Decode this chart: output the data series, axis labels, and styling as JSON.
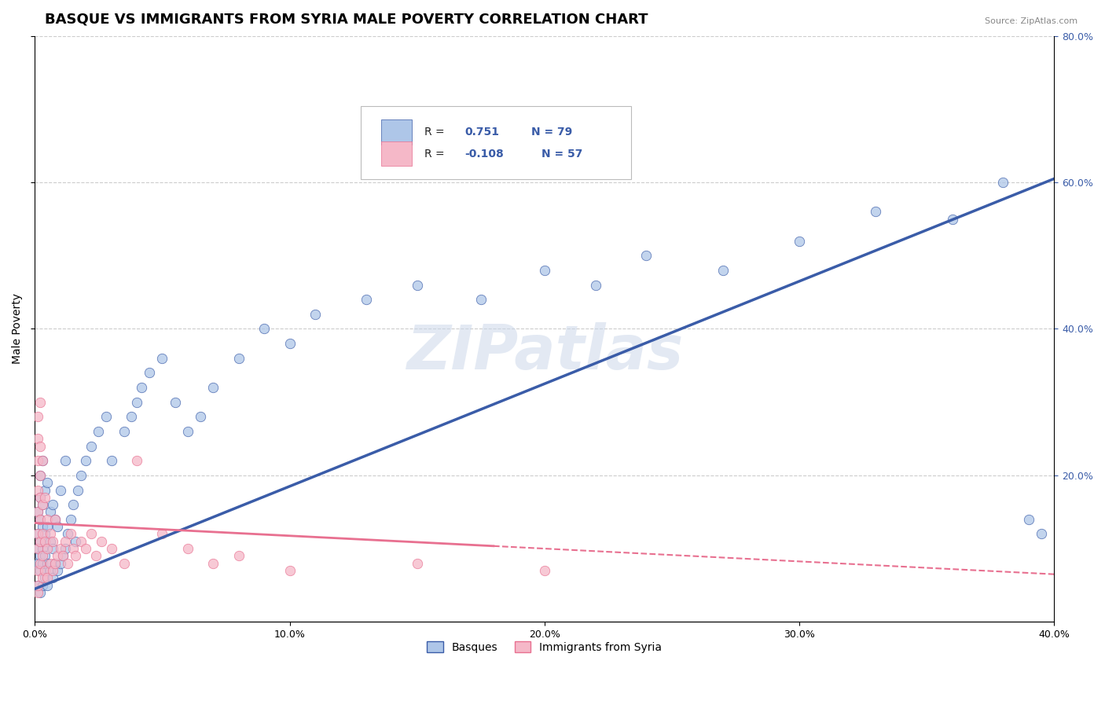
{
  "title": "BASQUE VS IMMIGRANTS FROM SYRIA MALE POVERTY CORRELATION CHART",
  "source_text": "Source: ZipAtlas.com",
  "ylabel": "Male Poverty",
  "xlim": [
    0.0,
    0.4
  ],
  "ylim": [
    0.0,
    0.8
  ],
  "xtick_labels": [
    "0.0%",
    "10.0%",
    "20.0%",
    "30.0%",
    "40.0%"
  ],
  "xtick_values": [
    0.0,
    0.1,
    0.2,
    0.3,
    0.4
  ],
  "ytick_labels": [
    "20.0%",
    "40.0%",
    "60.0%",
    "80.0%"
  ],
  "ytick_values": [
    0.2,
    0.4,
    0.6,
    0.8
  ],
  "legend_labels": [
    "Basques",
    "Immigrants from Syria"
  ],
  "legend_r_values": [
    "0.751",
    "-0.108"
  ],
  "legend_n_values": [
    "79",
    "57"
  ],
  "series_blue_color": "#aec6e8",
  "series_pink_color": "#f5b8c8",
  "line_blue_color": "#3a5ca8",
  "line_pink_color": "#e87090",
  "watermark_text": "ZIPatlas",
  "title_fontsize": 13,
  "axis_label_fontsize": 10,
  "tick_fontsize": 9,
  "blue_line_x0": 0.0,
  "blue_line_y0": 0.045,
  "blue_line_x1": 0.4,
  "blue_line_y1": 0.605,
  "pink_line_x0": 0.0,
  "pink_line_y0": 0.135,
  "pink_line_x1": 0.4,
  "pink_line_y1": 0.065,
  "basques_x": [
    0.001,
    0.001,
    0.001,
    0.001,
    0.001,
    0.002,
    0.002,
    0.002,
    0.002,
    0.002,
    0.002,
    0.002,
    0.003,
    0.003,
    0.003,
    0.003,
    0.003,
    0.003,
    0.004,
    0.004,
    0.004,
    0.004,
    0.005,
    0.005,
    0.005,
    0.005,
    0.006,
    0.006,
    0.006,
    0.007,
    0.007,
    0.007,
    0.008,
    0.008,
    0.009,
    0.009,
    0.01,
    0.01,
    0.011,
    0.012,
    0.012,
    0.013,
    0.014,
    0.015,
    0.016,
    0.017,
    0.018,
    0.02,
    0.022,
    0.025,
    0.028,
    0.03,
    0.035,
    0.038,
    0.04,
    0.042,
    0.045,
    0.05,
    0.055,
    0.06,
    0.065,
    0.07,
    0.08,
    0.09,
    0.1,
    0.11,
    0.13,
    0.15,
    0.175,
    0.2,
    0.22,
    0.24,
    0.27,
    0.3,
    0.33,
    0.36,
    0.38,
    0.39,
    0.395
  ],
  "basques_y": [
    0.05,
    0.08,
    0.1,
    0.12,
    0.15,
    0.04,
    0.07,
    0.09,
    0.11,
    0.14,
    0.17,
    0.2,
    0.05,
    0.08,
    0.1,
    0.13,
    0.16,
    0.22,
    0.06,
    0.09,
    0.12,
    0.18,
    0.05,
    0.08,
    0.13,
    0.19,
    0.07,
    0.11,
    0.15,
    0.06,
    0.1,
    0.16,
    0.08,
    0.14,
    0.07,
    0.13,
    0.08,
    0.18,
    0.09,
    0.1,
    0.22,
    0.12,
    0.14,
    0.16,
    0.11,
    0.18,
    0.2,
    0.22,
    0.24,
    0.26,
    0.28,
    0.22,
    0.26,
    0.28,
    0.3,
    0.32,
    0.34,
    0.36,
    0.3,
    0.26,
    0.28,
    0.32,
    0.36,
    0.4,
    0.38,
    0.42,
    0.44,
    0.46,
    0.44,
    0.48,
    0.46,
    0.5,
    0.48,
    0.52,
    0.56,
    0.55,
    0.6,
    0.14,
    0.12
  ],
  "syria_x": [
    0.001,
    0.001,
    0.001,
    0.001,
    0.001,
    0.001,
    0.001,
    0.001,
    0.001,
    0.001,
    0.002,
    0.002,
    0.002,
    0.002,
    0.002,
    0.002,
    0.002,
    0.003,
    0.003,
    0.003,
    0.003,
    0.003,
    0.004,
    0.004,
    0.004,
    0.005,
    0.005,
    0.005,
    0.006,
    0.006,
    0.007,
    0.007,
    0.008,
    0.008,
    0.009,
    0.01,
    0.011,
    0.012,
    0.013,
    0.014,
    0.015,
    0.016,
    0.018,
    0.02,
    0.022,
    0.024,
    0.026,
    0.03,
    0.035,
    0.04,
    0.05,
    0.06,
    0.07,
    0.08,
    0.1,
    0.15,
    0.2
  ],
  "syria_y": [
    0.04,
    0.07,
    0.1,
    0.12,
    0.15,
    0.18,
    0.22,
    0.25,
    0.28,
    0.05,
    0.08,
    0.11,
    0.14,
    0.17,
    0.2,
    0.24,
    0.3,
    0.06,
    0.09,
    0.12,
    0.16,
    0.22,
    0.07,
    0.11,
    0.17,
    0.06,
    0.1,
    0.14,
    0.08,
    0.12,
    0.07,
    0.11,
    0.08,
    0.14,
    0.09,
    0.1,
    0.09,
    0.11,
    0.08,
    0.12,
    0.1,
    0.09,
    0.11,
    0.1,
    0.12,
    0.09,
    0.11,
    0.1,
    0.08,
    0.22,
    0.12,
    0.1,
    0.08,
    0.09,
    0.07,
    0.08,
    0.07
  ],
  "marker_size": 80
}
